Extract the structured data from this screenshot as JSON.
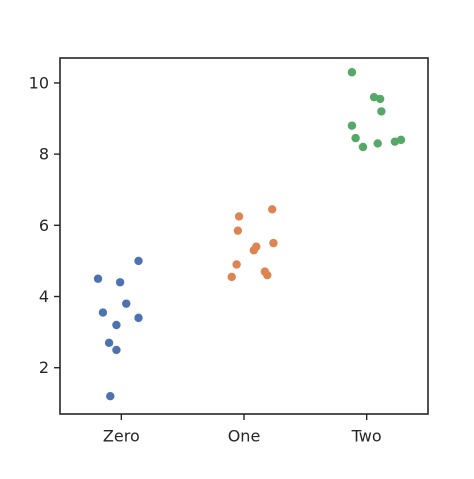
{
  "chart_data": {
    "type": "scatter",
    "title": "",
    "xlabel": "",
    "ylabel": "",
    "categories": [
      "Zero",
      "One",
      "Two"
    ],
    "ylim": [
      0.7,
      10.7
    ],
    "yticks": [
      2,
      4,
      6,
      8,
      10
    ],
    "grid": false,
    "series": [
      {
        "category": "Zero",
        "color": "#4c72b0",
        "points": [
          {
            "x": 0.14,
            "y": 5.0
          },
          {
            "x": -0.19,
            "y": 4.5
          },
          {
            "x": -0.01,
            "y": 4.4
          },
          {
            "x": 0.04,
            "y": 3.8
          },
          {
            "x": -0.15,
            "y": 3.55
          },
          {
            "x": 0.14,
            "y": 3.4
          },
          {
            "x": -0.04,
            "y": 3.2
          },
          {
            "x": -0.1,
            "y": 2.7
          },
          {
            "x": -0.04,
            "y": 2.5
          },
          {
            "x": -0.09,
            "y": 1.2
          }
        ]
      },
      {
        "category": "One",
        "color": "#dd8452",
        "points": [
          {
            "x": 0.23,
            "y": 6.45
          },
          {
            "x": -0.04,
            "y": 6.25
          },
          {
            "x": -0.05,
            "y": 5.85
          },
          {
            "x": 0.24,
            "y": 5.5
          },
          {
            "x": 0.1,
            "y": 5.4
          },
          {
            "x": 0.08,
            "y": 5.3
          },
          {
            "x": -0.06,
            "y": 4.9
          },
          {
            "x": 0.17,
            "y": 4.7
          },
          {
            "x": 0.19,
            "y": 4.6
          },
          {
            "x": -0.1,
            "y": 4.55
          }
        ]
      },
      {
        "category": "Two",
        "color": "#55a868",
        "points": [
          {
            "x": -0.12,
            "y": 10.3
          },
          {
            "x": 0.06,
            "y": 9.6
          },
          {
            "x": 0.11,
            "y": 9.55
          },
          {
            "x": 0.12,
            "y": 9.2
          },
          {
            "x": -0.12,
            "y": 8.8
          },
          {
            "x": -0.09,
            "y": 8.45
          },
          {
            "x": 0.28,
            "y": 8.4
          },
          {
            "x": 0.23,
            "y": 8.35
          },
          {
            "x": 0.09,
            "y": 8.3
          },
          {
            "x": -0.03,
            "y": 8.2
          }
        ]
      }
    ]
  }
}
